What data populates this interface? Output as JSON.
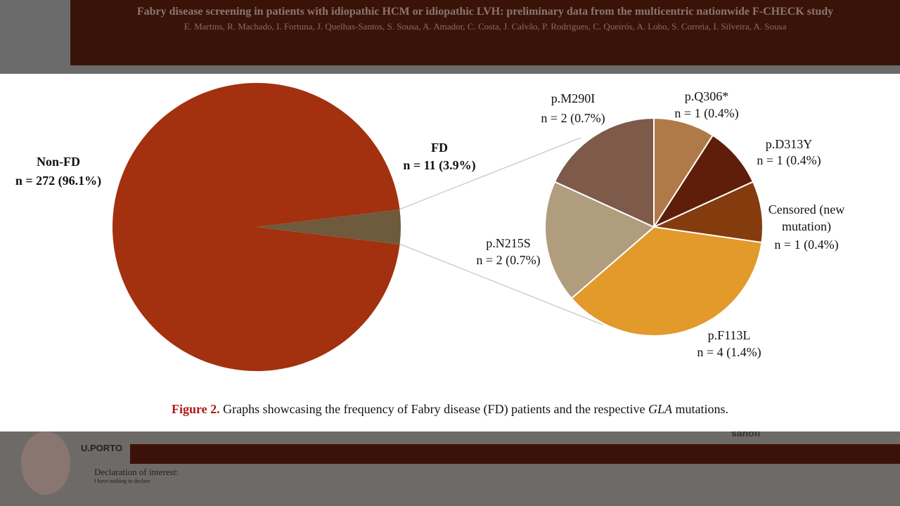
{
  "poster": {
    "title": "Fabry disease screening in patients with idiopathic HCM or idiopathic LVH: preliminary data from the multicentric nationwide F-CHECK study",
    "authors": "E. Martins, R. Machado, I. Fortuna, J. Quelhas-Santos, S. Sousa, A. Amador, C. Costa, J. Calvão, P. Rodrigues, C. Queirós, A. Lobo, S. Correia, I. Silveira, A. Sousa"
  },
  "chart_data": [
    {
      "type": "pie",
      "categories": [
        "Non-FD",
        "FD"
      ],
      "values": [
        272,
        11
      ],
      "value_labels": [
        "n = 272 (96.1%)",
        "n = 11 (3.9%)"
      ],
      "colors": [
        "#a3300e",
        "#6e5a3c"
      ]
    },
    {
      "type": "pie",
      "categories": [
        "p.Q306*",
        "p.D313Y",
        "Censored (new mutation)",
        "p.F113L",
        "p.N215S",
        "p.M290I"
      ],
      "values": [
        1,
        1,
        1,
        4,
        2,
        2
      ],
      "value_labels": [
        "n = 1 (0.4%)",
        "n = 1 (0.4%)",
        "n = 1 (0.4%)",
        "n = 4 (1.4%)",
        "n = 2 (0.7%)",
        "n = 2 (0.7%)"
      ],
      "colors": [
        "#b07a48",
        "#5e1e0a",
        "#843b0e",
        "#e29a2b",
        "#b09d7e",
        "#7d5a4a"
      ]
    }
  ],
  "caption": {
    "label": "Figure 2.",
    "text_before": "Graphs showcasing the frequency of Fabry disease (FD) patients and the respective",
    "italic": "GLA",
    "text_after": "mutations."
  },
  "footer": {
    "logo": "U.PORTO",
    "sponsor": "sanofi",
    "declaration_title": "Declaration of interest:",
    "declaration_text": "I have nothing to declare"
  }
}
